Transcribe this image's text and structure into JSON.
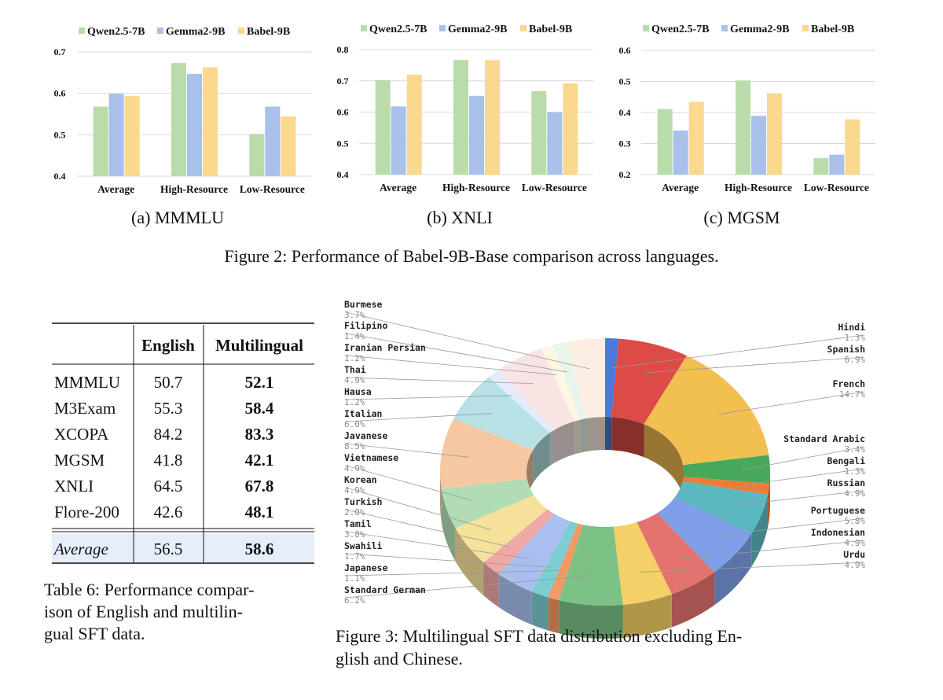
{
  "legend": [
    "Qwen2.5-7B",
    "Gemma2-9B",
    "Babel-9B"
  ],
  "colors": {
    "qwen": "#b9dcaa",
    "gemma": "#a8c0ea",
    "babel": "#fad88d",
    "grid": "#d9d9d9",
    "table_highlight": "#e5eefa",
    "text": "#111111",
    "label_gray": "#8c8c8c"
  },
  "figure2": {
    "caption": "Figure 2: Performance of Babel-9B-Base comparison across languages."
  },
  "chart_data": [
    {
      "type": "bar",
      "subcaption": "(a) MMMLU",
      "categories": [
        "Average",
        "High-Resource",
        "Low-Resource"
      ],
      "series": [
        {
          "name": "Qwen2.5-7B",
          "values": [
            0.568,
            0.673,
            0.502
          ]
        },
        {
          "name": "Gemma2-9B",
          "values": [
            0.599,
            0.647,
            0.568
          ]
        },
        {
          "name": "Babel-9B",
          "values": [
            0.594,
            0.663,
            0.544
          ]
        }
      ],
      "ylim": [
        0.4,
        0.7
      ],
      "yticks": [
        0.4,
        0.5,
        0.6,
        0.7
      ],
      "ytick_labels": [
        "0.4",
        "0.5",
        "0.6",
        "0.7"
      ],
      "grid": true,
      "legend_position": "top"
    },
    {
      "type": "bar",
      "subcaption": "(b) XNLI",
      "categories": [
        "Average",
        "High-Resource",
        "Low-Resource"
      ],
      "series": [
        {
          "name": "Qwen2.5-7B",
          "values": [
            0.702,
            0.767,
            0.667
          ]
        },
        {
          "name": "Gemma2-9B",
          "values": [
            0.618,
            0.652,
            0.599
          ]
        },
        {
          "name": "Babel-9B",
          "values": [
            0.72,
            0.766,
            0.692
          ]
        }
      ],
      "ylim": [
        0.4,
        0.8
      ],
      "yticks": [
        0.4,
        0.5,
        0.6,
        0.7,
        0.8
      ],
      "ytick_labels": [
        "0.4",
        "0.5",
        "0.6",
        "0.7",
        "0.8"
      ],
      "grid": true,
      "legend_position": "top"
    },
    {
      "type": "bar",
      "subcaption": "(c) MGSM",
      "categories": [
        "Average",
        "High-Resource",
        "Low-Resource"
      ],
      "series": [
        {
          "name": "Qwen2.5-7B",
          "values": [
            0.411,
            0.503,
            0.253
          ]
        },
        {
          "name": "Gemma2-9B",
          "values": [
            0.342,
            0.389,
            0.264
          ]
        },
        {
          "name": "Babel-9B",
          "values": [
            0.434,
            0.462,
            0.378
          ]
        }
      ],
      "ylim": [
        0.2,
        0.6
      ],
      "yticks": [
        0.2,
        0.3,
        0.4,
        0.5,
        0.6
      ],
      "ytick_labels": [
        "0.2",
        "0.3",
        "0.4",
        "0.5",
        "0.6"
      ],
      "grid": true,
      "legend_position": "top"
    },
    {
      "type": "pie",
      "subtype": "3d-donut",
      "caption_lines": [
        "Figure 3: Multilingual SFT data distribution excluding En-",
        "glish and Chinese."
      ],
      "slices": [
        {
          "label": "Hindi",
          "pct": "1.3%",
          "value": 1.3,
          "color": "#4a7bdc",
          "side": "right"
        },
        {
          "label": "Spanish",
          "pct": "6.9%",
          "value": 6.9,
          "color": "#dd4b46",
          "side": "right"
        },
        {
          "label": "French",
          "pct": "14.7%",
          "value": 14.7,
          "color": "#f2bf51",
          "side": "right"
        },
        {
          "label": "Standard Arabic",
          "pct": "3.4%",
          "value": 3.4,
          "color": "#47a85a",
          "side": "right"
        },
        {
          "label": "Bengali",
          "pct": "1.3%",
          "value": 1.3,
          "color": "#ec7c3a",
          "side": "right"
        },
        {
          "label": "Russian",
          "pct": "4.9%",
          "value": 4.9,
          "color": "#5bb7c0",
          "side": "right"
        },
        {
          "label": "Portuguese",
          "pct": "5.8%",
          "value": 5.8,
          "color": "#7ea0e8",
          "side": "right"
        },
        {
          "label": "Indonesian",
          "pct": "4.9%",
          "value": 4.9,
          "color": "#e47370",
          "side": "right"
        },
        {
          "label": "Urdu",
          "pct": "4.9%",
          "value": 4.9,
          "color": "#f4d066",
          "side": "right"
        },
        {
          "label": "Standard German",
          "pct": "6.2%",
          "value": 6.2,
          "color": "#7cc185",
          "side": "left"
        },
        {
          "label": "Japanese",
          "pct": "1.1%",
          "value": 1.1,
          "color": "#f19a64",
          "side": "left"
        },
        {
          "label": "Swahili",
          "pct": "1.7%",
          "value": 1.7,
          "color": "#7ecdd2",
          "side": "left"
        },
        {
          "label": "Tamil",
          "pct": "3.8%",
          "value": 3.8,
          "color": "#a9bff0",
          "side": "left"
        },
        {
          "label": "Turkish",
          "pct": "2.0%",
          "value": 2.0,
          "color": "#eea9a7",
          "side": "left"
        },
        {
          "label": "Korean",
          "pct": "4.9%",
          "value": 4.9,
          "color": "#f6e19a",
          "side": "left"
        },
        {
          "label": "Vietnamese",
          "pct": "4.9%",
          "value": 4.9,
          "color": "#b1dcb5",
          "side": "left"
        },
        {
          "label": "Javanese",
          "pct": "8.5%",
          "value": 8.5,
          "color": "#f6c8a2",
          "side": "left"
        },
        {
          "label": "Italian",
          "pct": "6.0%",
          "value": 6.0,
          "color": "#b7e1e4",
          "side": "left"
        },
        {
          "label": "Hausa",
          "pct": "1.2%",
          "value": 1.2,
          "color": "#e4ebfa",
          "side": "left"
        },
        {
          "label": "Thai",
          "pct": "4.9%",
          "value": 4.9,
          "color": "#f8e4e3",
          "side": "left"
        },
        {
          "label": "Iranian Persian",
          "pct": "1.2%",
          "value": 1.2,
          "color": "#fdf6e2",
          "side": "left"
        },
        {
          "label": "Filipino",
          "pct": "1.4%",
          "value": 1.4,
          "color": "#e9f5ea",
          "side": "left"
        },
        {
          "label": "Burmese",
          "pct": "3.7%",
          "value": 3.7,
          "color": "#fdeee4",
          "side": "left"
        }
      ]
    }
  ],
  "table6": {
    "headers": [
      "",
      "English",
      "Multilingual"
    ],
    "rows": [
      {
        "name": "MMMLU",
        "english": "50.7",
        "multi": "52.1"
      },
      {
        "name": "M3Exam",
        "english": "55.3",
        "multi": "58.4"
      },
      {
        "name": "XCOPA",
        "english": "84.2",
        "multi": "83.3"
      },
      {
        "name": "MGSM",
        "english": "41.8",
        "multi": "42.1"
      },
      {
        "name": "XNLI",
        "english": "64.5",
        "multi": "67.8"
      },
      {
        "name": "Flore-200",
        "english": "42.6",
        "multi": "48.1"
      }
    ],
    "average": {
      "name": "Average",
      "english": "56.5",
      "multi": "58.6"
    },
    "caption_lines": [
      "Table 6: Performance compar-",
      "ison of English and multilin-",
      "gual SFT data."
    ]
  }
}
